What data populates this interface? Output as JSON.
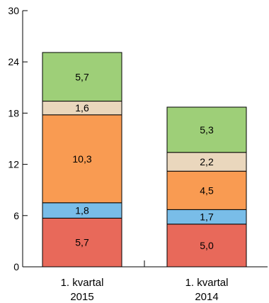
{
  "chart_data": {
    "type": "bar",
    "stacked": true,
    "title": "",
    "xlabel": "",
    "ylabel": "",
    "ylim": [
      0,
      30
    ],
    "yticks": [
      "0",
      "6",
      "12",
      "18",
      "24",
      "30"
    ],
    "grid": false,
    "categories": [
      [
        "1. kvartal",
        "2015"
      ],
      [
        "1. kvartal",
        "2014"
      ]
    ],
    "series": [
      {
        "color": "#e8695a",
        "values": [
          5.7,
          5.0
        ],
        "labels": [
          "5,7",
          "5,0"
        ]
      },
      {
        "color": "#79bde8",
        "values": [
          1.8,
          1.7
        ],
        "labels": [
          "1,8",
          "1,7"
        ]
      },
      {
        "color": "#f99b52",
        "values": [
          10.3,
          4.5
        ],
        "labels": [
          "10,3",
          "4,5"
        ]
      },
      {
        "color": "#ead7bd",
        "values": [
          1.6,
          2.2
        ],
        "labels": [
          "1,6",
          "2,2"
        ]
      },
      {
        "color": "#9ecf78",
        "values": [
          5.7,
          5.3
        ],
        "labels": [
          "5,7",
          "5,3"
        ]
      }
    ]
  }
}
